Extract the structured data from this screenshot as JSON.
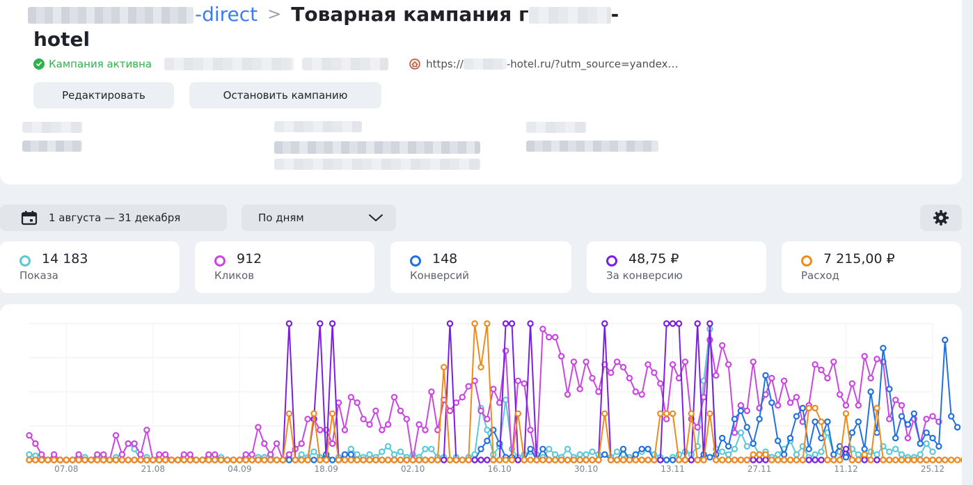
{
  "header": {
    "breadcrumb_link": "-direct",
    "breadcrumb_separator": ">",
    "title_part1": "Товарная кампания",
    "title_dash": "-",
    "title_part2": "hotel"
  },
  "status": {
    "label": "Кампания активна",
    "url": "https://",
    "url_suffix": "-hotel.ru/?utm_source=yandex…",
    "color": "#2fb24c",
    "icon": "check-circle-icon",
    "url_icon": "favicon-icon"
  },
  "actions": {
    "edit_label": "Редактировать",
    "stop_label": "Остановить кампанию"
  },
  "toolbar": {
    "date_range": "1 августа — 31 декабря",
    "date_icon": "calendar-icon",
    "group_by": "По дням",
    "group_icon": "chevron-down-icon",
    "settings_icon": "gear-icon"
  },
  "kpis": [
    {
      "value": "14 183",
      "label": "Показа",
      "color": "#5bc8d8"
    },
    {
      "value": "912",
      "label": "Кликов",
      "color": "#c946e0"
    },
    {
      "value": "148",
      "label": "Конверсий",
      "color": "#2070e0"
    },
    {
      "value": "48,75 ₽",
      "label": "За конверсию",
      "color": "#7a1fe0"
    },
    {
      "value": "7 215,00 ₽",
      "label": "Расход",
      "color": "#f08a1a"
    }
  ],
  "chart_data": {
    "type": "line",
    "x_tick_labels": [
      "07.08",
      "21.08",
      "04.09",
      "18.09",
      "02.10",
      "16.10",
      "30.10",
      "13.11",
      "27.11",
      "11.12",
      "25.12"
    ],
    "grid": true,
    "legend": "none",
    "ylim": [
      0,
      100
    ],
    "series": [
      {
        "name": "Показа",
        "color": "#5bc8d8",
        "values": [
          4,
          3,
          0,
          0,
          0,
          0,
          0,
          0,
          0,
          2,
          0,
          4,
          0,
          0,
          2,
          4,
          12,
          8,
          0,
          2,
          0,
          0,
          0,
          0,
          0,
          0,
          0,
          0,
          0,
          2,
          0,
          2,
          0,
          0,
          0,
          2,
          0,
          2,
          2,
          4,
          0,
          0,
          2,
          0,
          4,
          2,
          6,
          2,
          4,
          0,
          2,
          4,
          8,
          4,
          2,
          4,
          2,
          6,
          10,
          4,
          6,
          2,
          4,
          2,
          8,
          8,
          2,
          2,
          0,
          2,
          0,
          2,
          4,
          38,
          22,
          4,
          10,
          44,
          8,
          2,
          4,
          6,
          4,
          2,
          8,
          4,
          2,
          8,
          2,
          4,
          4,
          6,
          4,
          4,
          2,
          6,
          4,
          2,
          4,
          6,
          8,
          4,
          2,
          0,
          2,
          4,
          6,
          4,
          10,
          58,
          96,
          8,
          6,
          4,
          8,
          20,
          10,
          12,
          4,
          6,
          2,
          4,
          8,
          14,
          4,
          10,
          2,
          4,
          6,
          20,
          4,
          6,
          2,
          8,
          4,
          2,
          6,
          4,
          10,
          6,
          8,
          4,
          2,
          2,
          4,
          12,
          6
        ]
      },
      {
        "name": "Кликов",
        "color": "#c946e0",
        "values": [
          18,
          12,
          4,
          0,
          4,
          0,
          0,
          0,
          4,
          0,
          0,
          4,
          4,
          0,
          18,
          4,
          12,
          12,
          4,
          22,
          0,
          4,
          4,
          0,
          0,
          4,
          4,
          0,
          0,
          4,
          4,
          0,
          0,
          0,
          0,
          4,
          4,
          24,
          12,
          4,
          12,
          0,
          4,
          8,
          12,
          30,
          30,
          22,
          22,
          12,
          42,
          22,
          46,
          42,
          30,
          26,
          36,
          22,
          26,
          46,
          36,
          30,
          0,
          26,
          22,
          50,
          22,
          44,
          36,
          42,
          46,
          54,
          58,
          36,
          30,
          52,
          42,
          80,
          0,
          58,
          56,
          22,
          0,
          96,
          90,
          90,
          76,
          48,
          72,
          52,
          72,
          60,
          50,
          70,
          64,
          72,
          68,
          60,
          50,
          48,
          70,
          64,
          56,
          30,
          70,
          60,
          72,
          30,
          24,
          46,
          88,
          62,
          84,
          70,
          20,
          40,
          36,
          72,
          38,
          48,
          60,
          40,
          58,
          42,
          46,
          28,
          40,
          70,
          66,
          60,
          72,
          48,
          40,
          56,
          40,
          76,
          60,
          74,
          72,
          30,
          44,
          40,
          16,
          30,
          12,
          30,
          32,
          28
        ]
      },
      {
        "name": "Конверсий",
        "color": "#2070e0",
        "values": [
          0,
          0,
          0,
          0,
          0,
          0,
          0,
          0,
          0,
          0,
          0,
          0,
          0,
          0,
          0,
          0,
          0,
          0,
          0,
          0,
          0,
          0,
          0,
          0,
          0,
          0,
          0,
          0,
          0,
          0,
          0,
          0,
          0,
          0,
          0,
          0,
          0,
          0,
          0,
          0,
          0,
          0,
          0,
          0,
          0,
          0,
          0,
          0,
          4,
          0,
          0,
          4,
          4,
          0,
          0,
          0,
          0,
          0,
          0,
          0,
          0,
          0,
          0,
          0,
          0,
          0,
          0,
          0,
          0,
          0,
          0,
          0,
          0,
          8,
          14,
          22,
          12,
          2,
          2,
          0,
          0,
          8,
          0,
          8,
          0,
          0,
          0,
          0,
          0,
          0,
          0,
          0,
          0,
          4,
          0,
          0,
          8,
          0,
          4,
          8,
          8,
          0,
          0,
          0,
          0,
          0,
          0,
          0,
          0,
          4,
          2,
          4,
          16,
          10,
          30,
          36,
          24,
          12,
          30,
          62,
          42,
          14,
          4,
          16,
          32,
          38,
          8,
          28,
          16,
          28,
          4,
          10,
          2,
          20,
          28,
          8,
          50,
          20,
          82,
          52,
          16,
          32,
          26,
          34,
          12,
          20,
          16,
          10,
          88,
          32,
          24
        ]
      },
      {
        "name": "За конверсию",
        "color": "#7a1fe0",
        "values": [
          0,
          0,
          0,
          0,
          0,
          0,
          0,
          0,
          0,
          0,
          0,
          0,
          0,
          0,
          0,
          0,
          0,
          0,
          0,
          0,
          0,
          0,
          0,
          0,
          0,
          0,
          0,
          0,
          0,
          0,
          0,
          0,
          0,
          0,
          0,
          0,
          0,
          0,
          0,
          0,
          0,
          0,
          100,
          0,
          0,
          0,
          30,
          100,
          0,
          100,
          0,
          0,
          0,
          0,
          0,
          0,
          0,
          0,
          0,
          0,
          0,
          0,
          0,
          0,
          0,
          0,
          0,
          0,
          100,
          0,
          0,
          0,
          0,
          0,
          0,
          0,
          0,
          100,
          100,
          0,
          0,
          100,
          0,
          0,
          0,
          0,
          0,
          0,
          0,
          0,
          0,
          0,
          0,
          100,
          0,
          0,
          0,
          0,
          0,
          0,
          0,
          0,
          0,
          100,
          100,
          100,
          0,
          0,
          100,
          0,
          100,
          0,
          0,
          0,
          0,
          0,
          0,
          0,
          0,
          0,
          0,
          0,
          0,
          0,
          0,
          0,
          0,
          0,
          0,
          0,
          0,
          0,
          8,
          0,
          0,
          0,
          0,
          0,
          0,
          0,
          0,
          0,
          0,
          0,
          0,
          0,
          0,
          0,
          0
        ]
      },
      {
        "name": "Расход",
        "color": "#f08a1a",
        "values": [
          0,
          0,
          0,
          0,
          0,
          0,
          0,
          0,
          0,
          0,
          0,
          0,
          0,
          0,
          0,
          0,
          0,
          0,
          0,
          0,
          0,
          0,
          0,
          0,
          0,
          0,
          0,
          0,
          0,
          0,
          0,
          0,
          0,
          0,
          0,
          0,
          0,
          0,
          0,
          0,
          0,
          0,
          34,
          0,
          0,
          0,
          34,
          0,
          0,
          34,
          0,
          0,
          0,
          0,
          0,
          0,
          0,
          0,
          0,
          0,
          0,
          0,
          0,
          0,
          0,
          0,
          0,
          68,
          0,
          0,
          0,
          0,
          100,
          68,
          100,
          0,
          0,
          0,
          0,
          34,
          0,
          0,
          0,
          0,
          0,
          0,
          0,
          0,
          0,
          0,
          0,
          0,
          0,
          34,
          0,
          0,
          0,
          0,
          0,
          0,
          0,
          0,
          34,
          34,
          34,
          0,
          0,
          34,
          0,
          0,
          34,
          0,
          0,
          0,
          0,
          0,
          0,
          4,
          4,
          4,
          0,
          0,
          0,
          0,
          0,
          0,
          38,
          38,
          28,
          0,
          0,
          0,
          34,
          0,
          0,
          4,
          0,
          38,
          0,
          0,
          0,
          0,
          0,
          0,
          0,
          0,
          0,
          0,
          0,
          0,
          0,
          0
        ]
      }
    ]
  }
}
